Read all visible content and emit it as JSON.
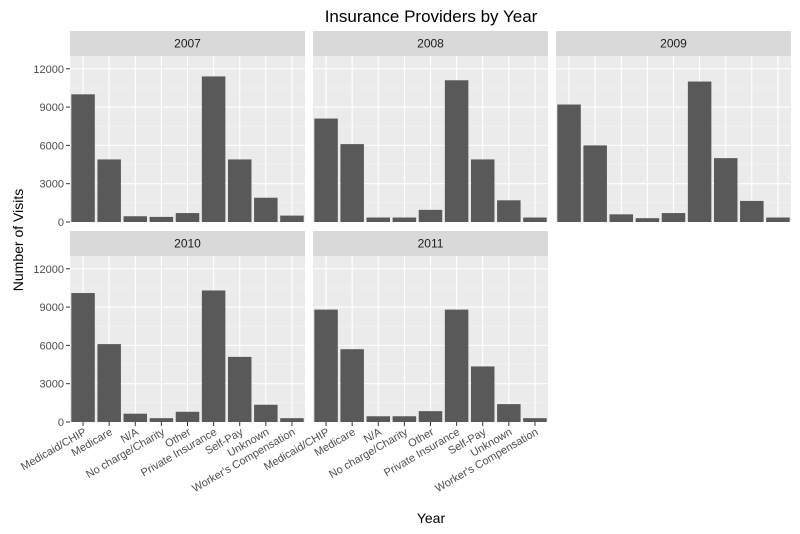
{
  "chart_data": {
    "type": "bar",
    "title": "Insurance Providers by Year",
    "xlabel": "Year",
    "ylabel": "Number of Visits",
    "ylim": [
      0,
      13000
    ],
    "yticks": [
      0,
      3000,
      6000,
      9000,
      12000
    ],
    "grid": true,
    "categories": [
      "Medicaid/CHIP",
      "Medicare",
      "N/A",
      "No charge/Charity",
      "Other",
      "Private Insurance",
      "Self-Pay",
      "Unknown",
      "Worker's Compensation"
    ],
    "facets": [
      {
        "label": "2007",
        "values": [
          10000,
          4900,
          450,
          400,
          700,
          11400,
          4900,
          1900,
          500
        ]
      },
      {
        "label": "2008",
        "values": [
          8100,
          6100,
          350,
          350,
          950,
          11100,
          4900,
          1700,
          350
        ]
      },
      {
        "label": "2009",
        "values": [
          9200,
          6000,
          600,
          300,
          700,
          11000,
          5000,
          1650,
          350
        ]
      },
      {
        "label": "2010",
        "values": [
          10100,
          6100,
          650,
          300,
          800,
          10300,
          5100,
          1350,
          300
        ]
      },
      {
        "label": "2011",
        "values": [
          8800,
          5700,
          450,
          450,
          850,
          8800,
          4350,
          1400,
          300
        ]
      }
    ]
  }
}
